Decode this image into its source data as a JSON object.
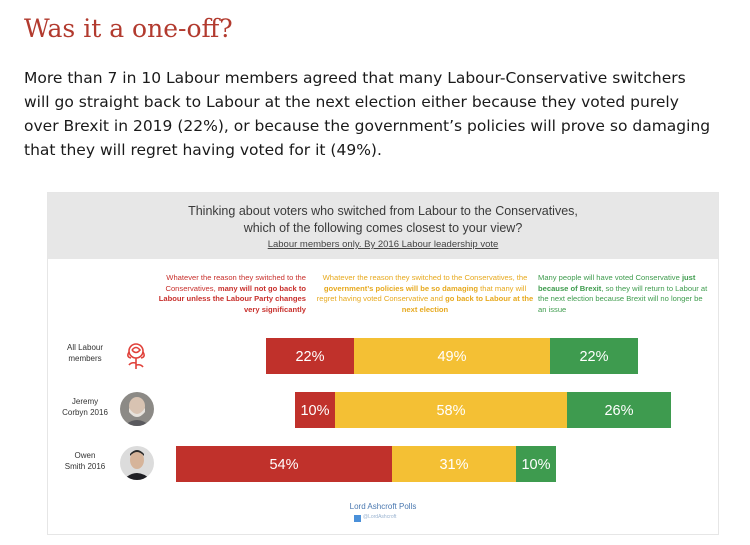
{
  "heading": "Was it a one-off?",
  "intro": "More than 7 in 10 Labour members agreed that many Labour-Conservative switchers will go straight back to Labour at the next election either because they voted purely over Brexit in 2019 (22%), or because the government’s policies will prove so damaging that they will regret having voted for it (49%).",
  "chart_data": {
    "type": "bar",
    "orientation": "horizontal",
    "stacked": true,
    "title_line1": "Thinking about voters who switched from Labour to the Conservatives,",
    "title_line2": "which of the following comes closest to your view?",
    "subtitle": "Labour members only. By 2016 Labour leadership vote",
    "categories": [
      "All Labour members",
      "Jeremy Corbyn 2016",
      "Owen Smith 2016"
    ],
    "category_lines": [
      [
        "All Labour",
        "members"
      ],
      [
        "Jeremy",
        "Corbyn 2016"
      ],
      [
        "Owen",
        "Smith 2016"
      ]
    ],
    "series": [
      {
        "color": "#c0312b",
        "values": [
          22,
          10,
          54
        ],
        "labels": [
          "22%",
          "10%",
          "54%"
        ],
        "description_parts": [
          {
            "t": "Whatever the reason they switched to the Conservatives, ",
            "b": false
          },
          {
            "t": "many will not go back to Labour unless the Labour Party changes very significantly",
            "b": true
          }
        ]
      },
      {
        "color": "#f4c034",
        "values": [
          49,
          58,
          31
        ],
        "labels": [
          "49%",
          "58%",
          "31%"
        ],
        "description_parts": [
          {
            "t": "Whatever the reason they switched to the Conservatives, the ",
            "b": false
          },
          {
            "t": "government’s policies will be so damaging",
            "b": true
          },
          {
            "t": " that many will regret having voted Conservative and ",
            "b": false
          },
          {
            "t": "go back to Labour at the next election",
            "b": true
          }
        ]
      },
      {
        "color": "#3e9b4f",
        "values": [
          22,
          26,
          10
        ],
        "labels": [
          "22%",
          "26%",
          "10%"
        ],
        "description_parts": [
          {
            "t": "Many people will have voted Conservative ",
            "b": false
          },
          {
            "t": "just because of Brexit",
            "b": true
          },
          {
            "t": ", so they will return to Labour at the next election because Brexit will no longer be an issue",
            "b": false
          }
        ]
      }
    ],
    "source": "Lord Ashcroft Polls",
    "twitter_handle": "@LordAshcroft"
  },
  "colors": {
    "heading": "#b23a2e",
    "header_bg": "#e7e7e7",
    "rose": "#e0413a"
  },
  "icons": [
    "labour-rose-icon",
    "corbyn-avatar",
    "smith-avatar",
    "twitter-icon"
  ]
}
